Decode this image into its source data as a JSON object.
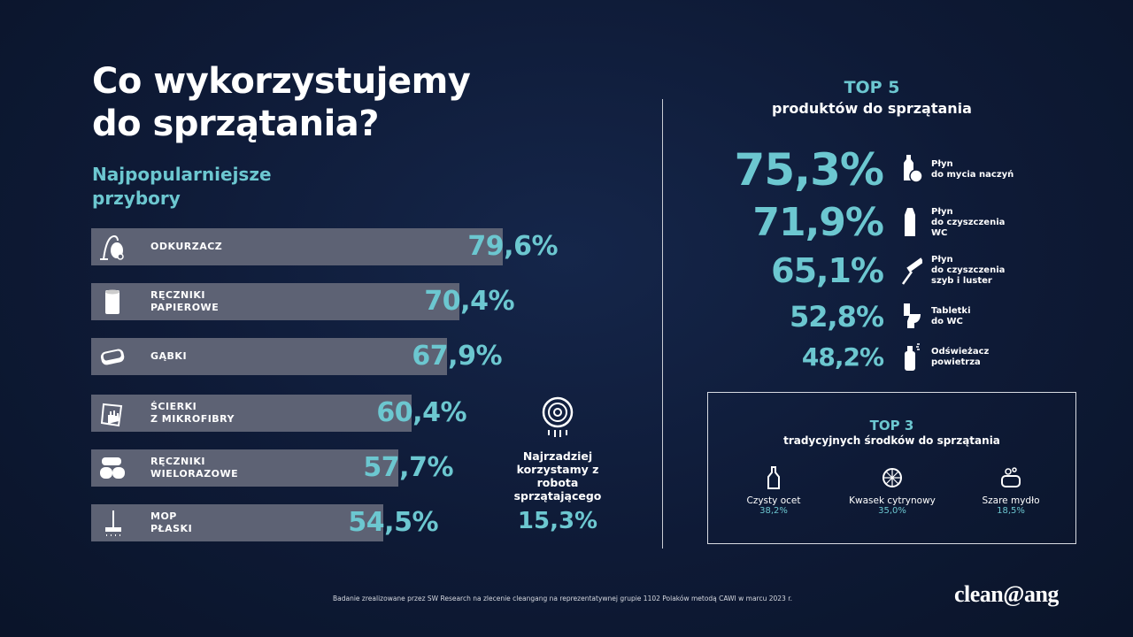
{
  "title_line1": "Co wykorzystujemy",
  "title_line2": "do sprzątania?",
  "subtitle_line1": "Najpopularniejsze",
  "subtitle_line2": "przybory",
  "chart_data": {
    "type": "bar",
    "orientation": "horizontal",
    "title": "Najpopularniejsze przybory",
    "categories": [
      "ODKURZACZ",
      "RĘCZNIKI\nPAPIEROWE",
      "GĄBKI",
      "ŚCIERKI\nZ MIKROFIBRY",
      "RĘCZNIKI\nWIELORAZOWE",
      "MOP\nPŁASKI"
    ],
    "values": [
      79.6,
      70.4,
      67.9,
      60.4,
      57.7,
      54.5
    ],
    "labels": [
      "79,6%",
      "70,4%",
      "67,9%",
      "60,4%",
      "57,7%",
      "54,5%"
    ],
    "icons": [
      "vacuum-icon",
      "paper-towel-icon",
      "sponge-icon",
      "microfiber-cloth-icon",
      "towels-icon",
      "flat-mop-icon"
    ],
    "unit": "%"
  },
  "robot": {
    "text": "Najrzadziej korzystamy z robota sprzątającego",
    "value": "15,3%"
  },
  "top5": {
    "heading": "TOP 5",
    "subheading": "produktów do sprzątania",
    "items": [
      {
        "value": "75,3%",
        "label": "Płyn\ndo mycia naczyń",
        "icon": "dish-soap-icon"
      },
      {
        "value": "71,9%",
        "label": "Płyn\ndo czyszczenia\nWC",
        "icon": "toilet-cleaner-icon"
      },
      {
        "value": "65,1%",
        "label": "Płyn\ndo czyszczenia\nszyb i luster",
        "icon": "window-squeegee-icon"
      },
      {
        "value": "52,8%",
        "label": "Tabletki\ndo WC",
        "icon": "toilet-icon"
      },
      {
        "value": "48,2%",
        "label": "Odświeżacz\npowietrza",
        "icon": "air-freshener-icon"
      }
    ]
  },
  "top3": {
    "heading": "TOP 3",
    "subheading": "tradycyjnych środków do sprzątania",
    "items": [
      {
        "name": "Czysty ocet",
        "value": "38,2%",
        "icon": "vinegar-bottle-icon"
      },
      {
        "name": "Kwasek cytrynowy",
        "value": "35,0%",
        "icon": "lemon-slice-icon"
      },
      {
        "name": "Szare mydło",
        "value": "18,5%",
        "icon": "soap-bar-icon"
      }
    ]
  },
  "footnote": "Badanie zrealizowane przez SW Research na zlecenie cleangang na reprezentatywnej grupie 1102 Polaków metodą CAWI w marcu 2023 r.",
  "logo": "clean@ang",
  "colors": {
    "accent": "#6cc7d0",
    "bar": "#5d6274",
    "background": "#0e1a36"
  }
}
